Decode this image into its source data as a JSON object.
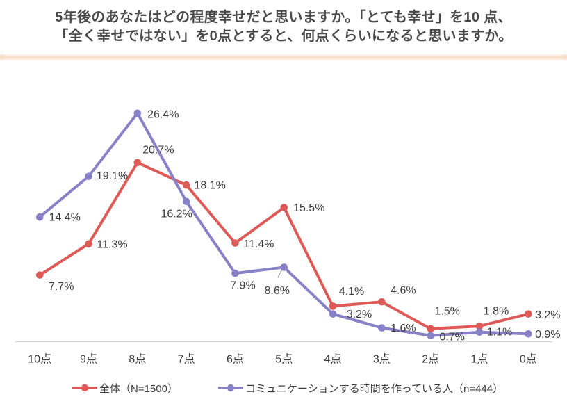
{
  "title": {
    "line1": "5年後のあなたはどの程度幸せだと思いますか。「とても幸せ」を10 点、",
    "line2": "「全く幸せではない」を0点とすると、何点くらいになると思いますか。"
  },
  "chart_data": {
    "type": "line",
    "categories": [
      "10点",
      "9点",
      "8点",
      "7点",
      "6点",
      "5点",
      "4点",
      "3点",
      "2点",
      "1点",
      "0点"
    ],
    "series": [
      {
        "name": "全体（N=1500）",
        "color": "#dd5a56",
        "values": [
          7.7,
          11.3,
          20.7,
          18.1,
          11.4,
          15.5,
          4.1,
          4.6,
          1.5,
          1.8,
          3.2
        ]
      },
      {
        "name": "コミュニケーションする時間を作っている人（n=444）",
        "color": "#8782c8",
        "values": [
          14.4,
          19.1,
          26.4,
          16.2,
          7.9,
          8.6,
          3.2,
          1.6,
          0.7,
          1.1,
          0.9
        ]
      }
    ],
    "value_suffix": "%",
    "data_labels": true,
    "ylim": [
      0,
      30
    ],
    "xlabel": "",
    "ylabel": "",
    "grid": false,
    "legend_position": "bottom",
    "accent_strip_color": "#f8d8bd",
    "axis_line_color": "#d4d4d4",
    "label_color": "#3b3b3b"
  }
}
